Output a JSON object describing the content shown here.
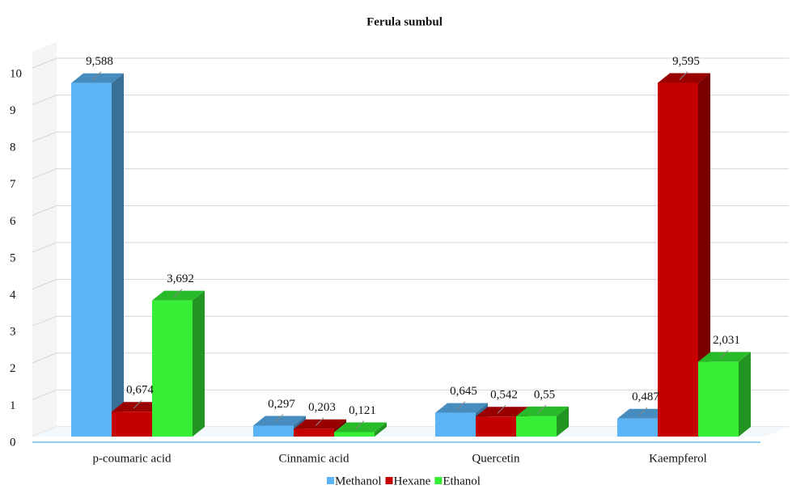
{
  "chart_data": {
    "type": "bar",
    "title": "Ferula sumbul",
    "categories": [
      "p-coumaric acid",
      "Cinnamic acid",
      "Quercetin",
      "Kaempferol"
    ],
    "series": [
      {
        "name": "Methanol",
        "color": "#5ab4f5",
        "values": [
          9.588,
          0.297,
          0.645,
          0.487
        ],
        "value_labels": [
          "9,588",
          "0,297",
          "0,645",
          "0,487"
        ]
      },
      {
        "name": "Hexane",
        "color": "#c40000",
        "values": [
          0.674,
          0.203,
          0.542,
          9.595
        ],
        "value_labels": [
          "0,674",
          "0,203",
          "0,542",
          "9,595"
        ]
      },
      {
        "name": "Ethanol",
        "color": "#35ee35",
        "values": [
          3.692,
          0.121,
          0.55,
          2.031
        ],
        "value_labels": [
          "3,692",
          "0,121",
          "0,55",
          "2,031"
        ]
      }
    ],
    "ylim": [
      0,
      10
    ],
    "yticks": [
      0,
      1,
      2,
      3,
      4,
      5,
      6,
      7,
      8,
      9,
      10
    ],
    "grid": true,
    "legend": "bottom"
  }
}
